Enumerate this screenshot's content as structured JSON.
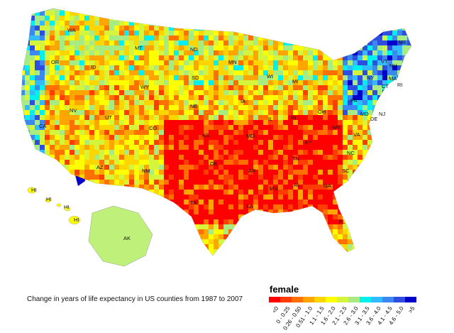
{
  "caption": "Change in years of life expectancy in US counties from 1987 to 2007",
  "legend": {
    "title": "female",
    "bins": [
      {
        "label": "<0",
        "color": "#ff0000"
      },
      {
        "label": "0 - 0.25",
        "color": "#ff3d00"
      },
      {
        "label": "0.26 - 0.50",
        "color": "#ff7000"
      },
      {
        "label": "0.51 - 1.0",
        "color": "#ffa500"
      },
      {
        "label": "1.1 - 1.5",
        "color": "#ffd500"
      },
      {
        "label": "1.6 - 2.0",
        "color": "#ffff00"
      },
      {
        "label": "2.1 - 2.5",
        "color": "#d4f53c"
      },
      {
        "label": "2.6 - 3.0",
        "color": "#a6ec82"
      },
      {
        "label": "3.1 - 3.5",
        "color": "#00f0f0"
      },
      {
        "label": "3.6 - 4.0",
        "color": "#33bbff"
      },
      {
        "label": "4.1 - 4.5",
        "color": "#3b88f0"
      },
      {
        "label": "4.6 - 5.0",
        "color": "#2f4ee0"
      },
      {
        "label": ">5",
        "color": "#0000cc"
      }
    ]
  },
  "states": [
    "WA",
    "OR",
    "CA",
    "NV",
    "ID",
    "MT",
    "WY",
    "UT",
    "AZ",
    "CO",
    "NM",
    "ND",
    "SD",
    "NE",
    "KS",
    "OK",
    "TX",
    "MN",
    "IA",
    "MO",
    "AR",
    "LA",
    "WI",
    "IL",
    "MS",
    "MI",
    "IN",
    "KY",
    "TN",
    "AL",
    "OH",
    "GA",
    "FL",
    "WV",
    "VA",
    "NC",
    "SC",
    "PA",
    "NY",
    "VT",
    "NH",
    "ME",
    "MA",
    "CT",
    "RI",
    "NJ",
    "DE",
    "MD",
    "AK",
    "HI",
    "HI",
    "HI",
    "HI"
  ]
}
